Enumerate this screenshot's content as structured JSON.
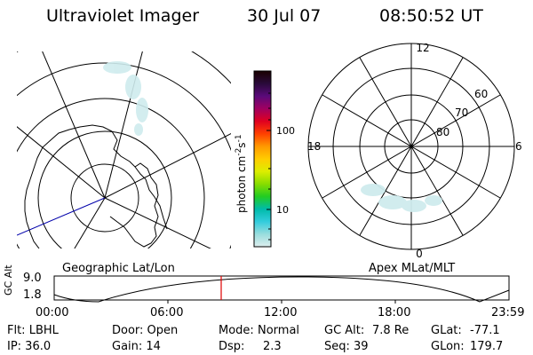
{
  "header": {
    "title": "Ultraviolet Imager",
    "date": "30 Jul 07",
    "time": "08:50:52 UT"
  },
  "colorbar": {
    "ticks": [
      "100",
      "10"
    ],
    "label_main": "photon cm",
    "label_exp1": "-2",
    "label_mid": "s",
    "label_exp2": "-1",
    "stops": [
      "#1a0000",
      "#2a0a3a",
      "#5a0a7a",
      "#a00060",
      "#e00020",
      "#ff4000",
      "#ff9900",
      "#ffcc00",
      "#ddee00",
      "#88dd00",
      "#22cc22",
      "#00bbaa",
      "#33ccdd",
      "#99dddd",
      "#ddeeee"
    ]
  },
  "geo_map": {
    "caption": "Geographic Lat/Lon"
  },
  "polar_map": {
    "caption": "Apex MLat/MLT",
    "mlt_labels": {
      "top": "12",
      "right": "6",
      "bottom": "0",
      "left": "18"
    },
    "lat_labels": [
      "60",
      "70",
      "80"
    ]
  },
  "altitude_plot": {
    "ylabel_top": "GC",
    "ylabel_bottom": "Alt",
    "yticks": [
      "9.0",
      "1.8"
    ],
    "xticks": [
      "00:00",
      "06:00",
      "12:00",
      "18:00",
      "23:59"
    ],
    "marker_color": "#e00000"
  },
  "info": {
    "row1": {
      "flt": "Flt: LBHL",
      "door": "Door: Open",
      "mode_label": "Mode:",
      "mode_value": "Normal",
      "gcalt_label": "GC Alt:",
      "gcalt_value": "7.8 Re",
      "glat_label": "GLat:",
      "glat_value": "-77.1"
    },
    "row2": {
      "ip": "IP: 36.0",
      "gain": "Gain: 14",
      "dsp_label": "Dsp:",
      "dsp_value": "2.3",
      "seq": "Seq: 39",
      "glon_label": "GLon:",
      "glon_value": "179.7"
    }
  }
}
